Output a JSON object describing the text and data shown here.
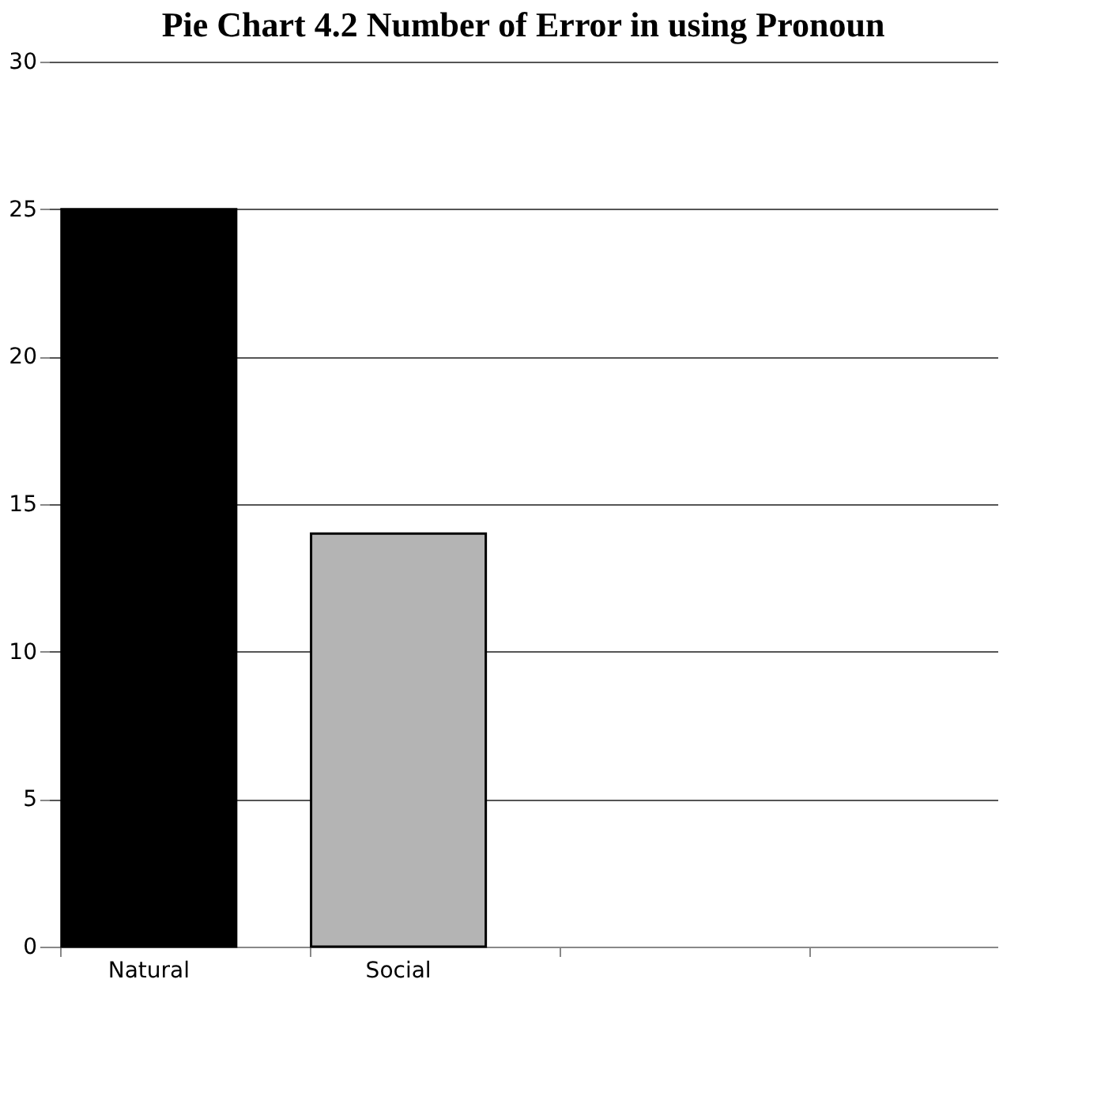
{
  "chart_data": {
    "type": "bar",
    "title": "Pie Chart 4.2 Number of Error in using Pronoun",
    "categories": [
      "Natural",
      "Social",
      null,
      null
    ],
    "values": [
      25,
      14,
      null,
      null
    ],
    "colors": [
      "#000000",
      "#b4b4b4",
      "#000000",
      "#000000"
    ],
    "ylim": [
      0,
      30
    ],
    "yticks": [
      0,
      5,
      10,
      15,
      20,
      25,
      30
    ],
    "grid": "y"
  }
}
